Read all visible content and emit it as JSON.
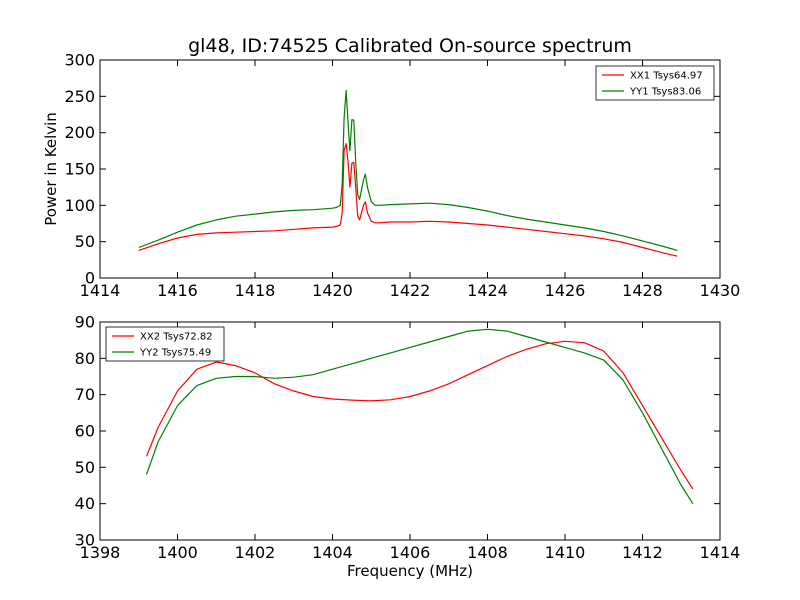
{
  "chart_data": [
    {
      "type": "line",
      "title": "gl48, ID:74525 Calibrated On-source spectrum",
      "xlabel": "",
      "ylabel": "Power in Kelvin",
      "xlim": [
        1414,
        1430
      ],
      "ylim": [
        0,
        300
      ],
      "xticks": [
        1414,
        1416,
        1418,
        1420,
        1422,
        1424,
        1426,
        1428,
        1430
      ],
      "yticks": [
        0,
        50,
        100,
        150,
        200,
        250,
        300
      ],
      "grid": false,
      "legend_position": "top-right",
      "series": [
        {
          "name": "XX1 Tsys64.97",
          "color": "#ff0000",
          "x": [
            1415.0,
            1415.5,
            1416.0,
            1416.5,
            1417.0,
            1417.5,
            1418.0,
            1418.5,
            1419.0,
            1419.5,
            1420.0,
            1420.1,
            1420.2,
            1420.25,
            1420.3,
            1420.35,
            1420.4,
            1420.45,
            1420.5,
            1420.55,
            1420.6,
            1420.65,
            1420.7,
            1420.8,
            1420.85,
            1420.9,
            1421.0,
            1421.1,
            1421.2,
            1421.5,
            1422.0,
            1422.5,
            1423.0,
            1423.5,
            1424.0,
            1424.5,
            1425.0,
            1425.5,
            1426.0,
            1426.5,
            1427.0,
            1427.5,
            1428.0,
            1428.5,
            1428.9
          ],
          "y": [
            38,
            47,
            55,
            60,
            62,
            63,
            64,
            65,
            67,
            69,
            70,
            71,
            73,
            90,
            175,
            185,
            160,
            125,
            158,
            159,
            125,
            85,
            80,
            100,
            105,
            90,
            78,
            76,
            76,
            77,
            77,
            78,
            77,
            75,
            73,
            70,
            67,
            64,
            61,
            58,
            54,
            49,
            42,
            35,
            30
          ]
        },
        {
          "name": "YY1 Tsys83.06",
          "color": "#008000",
          "x": [
            1415.0,
            1415.5,
            1416.0,
            1416.5,
            1417.0,
            1417.5,
            1418.0,
            1418.5,
            1419.0,
            1419.5,
            1420.0,
            1420.1,
            1420.2,
            1420.25,
            1420.3,
            1420.35,
            1420.4,
            1420.45,
            1420.5,
            1420.55,
            1420.6,
            1420.65,
            1420.7,
            1420.8,
            1420.85,
            1420.9,
            1421.0,
            1421.1,
            1421.2,
            1421.5,
            1422.0,
            1422.5,
            1423.0,
            1423.5,
            1424.0,
            1424.5,
            1425.0,
            1425.5,
            1426.0,
            1426.5,
            1427.0,
            1427.5,
            1428.0,
            1428.5,
            1428.9
          ],
          "y": [
            42,
            52,
            63,
            73,
            80,
            85,
            88,
            91,
            93,
            94,
            96,
            97,
            100,
            130,
            220,
            258,
            215,
            175,
            218,
            217,
            160,
            115,
            108,
            135,
            143,
            125,
            105,
            100,
            100,
            101,
            102,
            103,
            101,
            97,
            92,
            86,
            81,
            77,
            73,
            69,
            64,
            58,
            51,
            44,
            38
          ]
        }
      ]
    },
    {
      "type": "line",
      "title": "",
      "xlabel": "Frequency (MHz)",
      "ylabel": "",
      "xlim": [
        1398,
        1414
      ],
      "ylim": [
        30,
        90
      ],
      "xticks": [
        1398,
        1400,
        1402,
        1404,
        1406,
        1408,
        1410,
        1412,
        1414
      ],
      "yticks": [
        30,
        40,
        50,
        60,
        70,
        80,
        90
      ],
      "grid": false,
      "legend_position": "top-left",
      "series": [
        {
          "name": "XX2 Tsys72.82",
          "color": "#ff0000",
          "x": [
            1399.2,
            1399.5,
            1400.0,
            1400.5,
            1401.0,
            1401.5,
            1402.0,
            1402.5,
            1403.0,
            1403.5,
            1404.0,
            1404.5,
            1405.0,
            1405.5,
            1406.0,
            1406.5,
            1407.0,
            1407.5,
            1408.0,
            1408.5,
            1409.0,
            1409.5,
            1410.0,
            1410.5,
            1411.0,
            1411.5,
            1412.0,
            1412.5,
            1413.0,
            1413.3
          ],
          "y": [
            53,
            61,
            71,
            77,
            79,
            78,
            76,
            73,
            71,
            69.5,
            68.8,
            68.5,
            68.3,
            68.6,
            69.5,
            71,
            73,
            75.5,
            78,
            80.5,
            82.5,
            84,
            84.7,
            84.3,
            82,
            76,
            67,
            58,
            49,
            44
          ]
        },
        {
          "name": "YY2 Tsys75.49",
          "color": "#008000",
          "x": [
            1399.2,
            1399.5,
            1400.0,
            1400.5,
            1401.0,
            1401.5,
            1402.0,
            1402.5,
            1403.0,
            1403.5,
            1404.0,
            1404.5,
            1405.0,
            1405.5,
            1406.0,
            1406.5,
            1407.0,
            1407.5,
            1408.0,
            1408.5,
            1409.0,
            1409.5,
            1410.0,
            1410.5,
            1411.0,
            1411.5,
            1412.0,
            1412.5,
            1413.0,
            1413.3
          ],
          "y": [
            48,
            57,
            67,
            72.5,
            74.5,
            75,
            75,
            74.5,
            74.8,
            75.5,
            77,
            78.5,
            80,
            81.5,
            83,
            84.5,
            86,
            87.5,
            88,
            87.5,
            86,
            84.5,
            83,
            81.5,
            79.5,
            74,
            65,
            55,
            45,
            40
          ]
        }
      ]
    }
  ]
}
